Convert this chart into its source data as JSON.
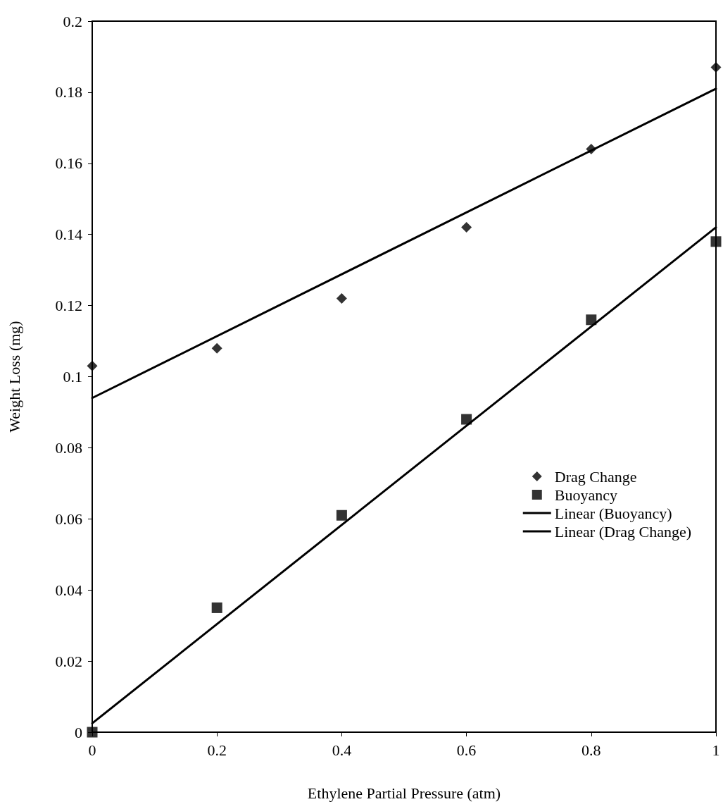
{
  "chart_data": {
    "type": "scatter",
    "xlabel": "Ethylene Partial Pressure (atm)",
    "ylabel": "Weight Loss (mg)",
    "xlim": [
      0,
      1
    ],
    "xticks": [
      0,
      0.2,
      0.4,
      0.6,
      0.8,
      1
    ],
    "ylim": [
      0,
      0.2
    ],
    "yticks": [
      0,
      0.02,
      0.04,
      0.06,
      0.08,
      0.1,
      0.12,
      0.14,
      0.16,
      0.18,
      0.2
    ],
    "grid": false,
    "legend": "right",
    "series": [
      {
        "name": "Drag Change",
        "type": "scatter",
        "marker": "diamond",
        "color": "#000000",
        "x": [
          0,
          0.2,
          0.4,
          0.6,
          0.8,
          1
        ],
        "values": [
          0.103,
          0.108,
          0.122,
          0.142,
          0.164,
          0.187
        ]
      },
      {
        "name": "Buoyancy",
        "type": "scatter",
        "marker": "square",
        "color": "#000000",
        "x": [
          0,
          0.2,
          0.4,
          0.6,
          0.8,
          1
        ],
        "values": [
          0,
          0.035,
          0.061,
          0.088,
          0.116,
          0.138
        ]
      },
      {
        "name": "Linear (Buoyancy)",
        "type": "line",
        "marker": "none",
        "line_style": "solid",
        "color": "#000000",
        "x": [
          0,
          1
        ],
        "values": [
          0.0025,
          0.142
        ]
      },
      {
        "name": "Linear (Drag Change)",
        "type": "line",
        "marker": "none",
        "line_style": "solid",
        "color": "#000000",
        "x": [
          0,
          1
        ],
        "values": [
          0.094,
          0.181
        ]
      }
    ]
  }
}
